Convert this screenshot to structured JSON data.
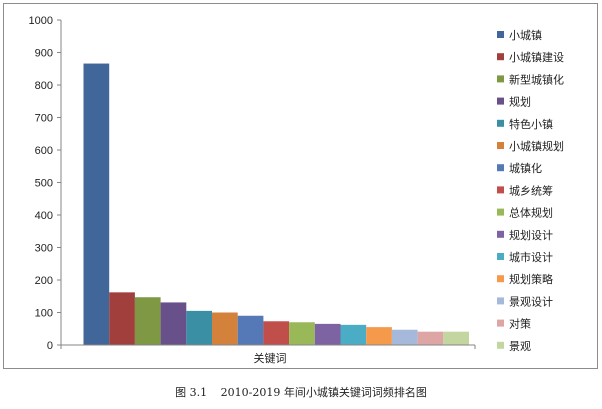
{
  "caption": {
    "number": "图 3.1",
    "text": "2010-2019 年间小城镇关键词词频排名图"
  },
  "chart_data": {
    "type": "bar",
    "xlabel": "关键词",
    "ylabel": "",
    "ylim": [
      0,
      1000
    ],
    "yticks": [
      0,
      100,
      200,
      300,
      400,
      500,
      600,
      700,
      800,
      900,
      1000
    ],
    "grid": false,
    "legend_position": "right",
    "categories": [
      "关键词"
    ],
    "series": [
      {
        "name": "小城镇",
        "values": [
          866
        ],
        "color": "#41679A"
      },
      {
        "name": "小城镇建设",
        "values": [
          162
        ],
        "color": "#A13F3C"
      },
      {
        "name": "新型城镇化",
        "values": [
          147
        ],
        "color": "#7F9843"
      },
      {
        "name": "规划",
        "values": [
          131
        ],
        "color": "#68508A"
      },
      {
        "name": "特色小镇",
        "values": [
          105
        ],
        "color": "#3A8FA4"
      },
      {
        "name": "小城镇规划",
        "values": [
          100
        ],
        "color": "#D3813B"
      },
      {
        "name": "城镇化",
        "values": [
          90
        ],
        "color": "#5479B6"
      },
      {
        "name": "城乡统筹",
        "values": [
          73
        ],
        "color": "#C04E4B"
      },
      {
        "name": "总体规划",
        "values": [
          70
        ],
        "color": "#99B958"
      },
      {
        "name": "规划设计",
        "values": [
          65
        ],
        "color": "#7D63A1"
      },
      {
        "name": "城市设计",
        "values": [
          62
        ],
        "color": "#4AACC5"
      },
      {
        "name": "规划策略",
        "values": [
          55
        ],
        "color": "#F59A4A"
      },
      {
        "name": "景观设计",
        "values": [
          47
        ],
        "color": "#A6B9DA"
      },
      {
        "name": "对策",
        "values": [
          41
        ],
        "color": "#DDA6A5"
      },
      {
        "name": "景观",
        "values": [
          41
        ],
        "color": "#C4D6A0"
      }
    ]
  }
}
